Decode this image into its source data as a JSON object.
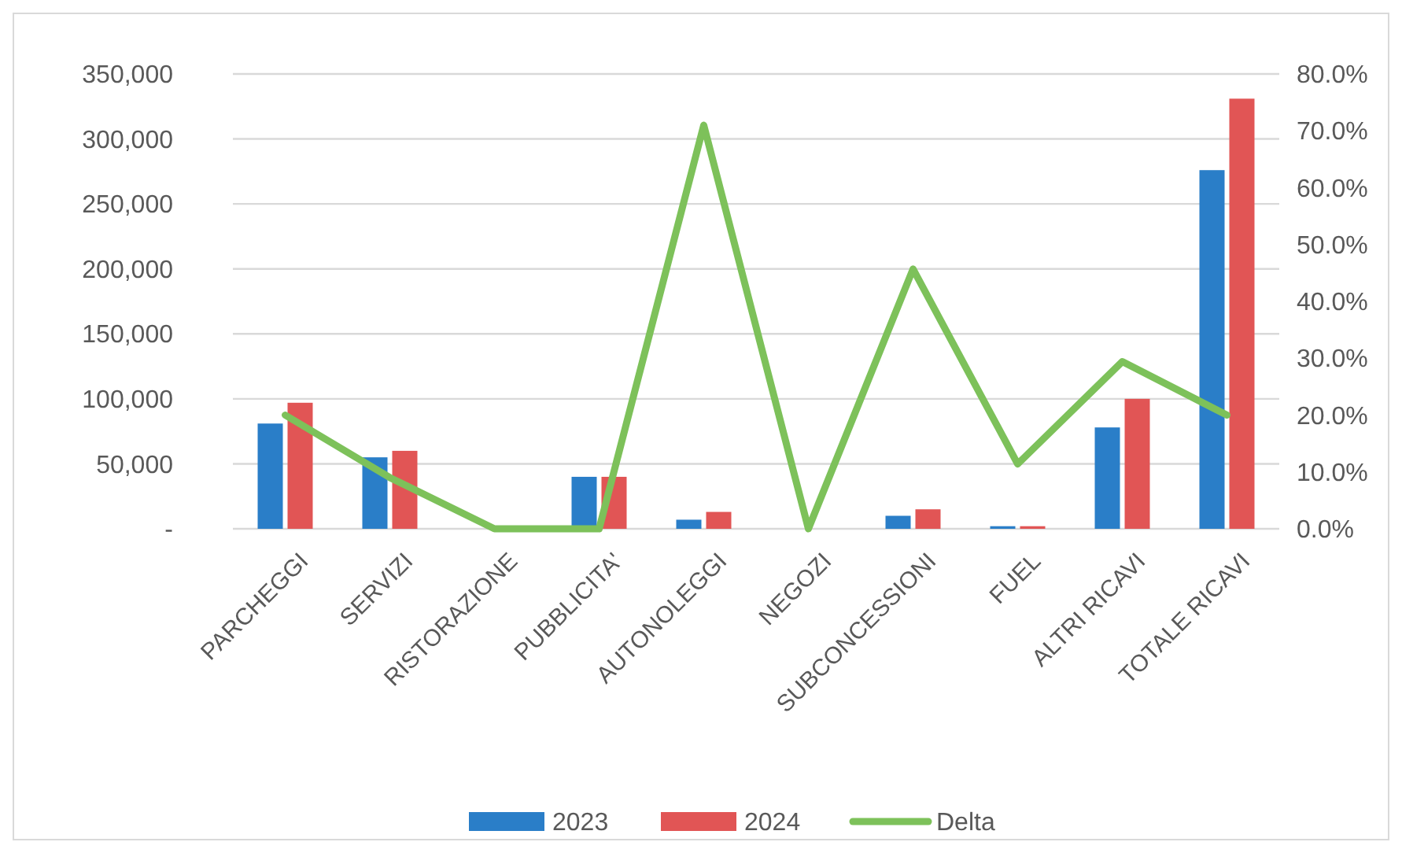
{
  "chart_data": {
    "type": "bar",
    "categories": [
      "PARCHEGGI",
      "SERVIZI",
      "RISTORAZIONE",
      "PUBBLICITA'",
      "AUTONOLEGGI",
      "NEGOZI",
      "SUBCONCESSIONI",
      "FUEL",
      "ALTRI RICAVI",
      "TOTALE RICAVI"
    ],
    "series": [
      {
        "name": "2023",
        "color": "#2a7ec8",
        "values": [
          81000,
          55000,
          0,
          40000,
          7000,
          0,
          10000,
          2000,
          78000,
          276000
        ]
      },
      {
        "name": "2024",
        "color": "#e15555",
        "values": [
          97000,
          60000,
          0,
          40000,
          13000,
          0,
          15000,
          2000,
          100000,
          331000
        ]
      },
      {
        "name": "Delta",
        "type": "line",
        "axis": "y2",
        "color": "#7dc15a",
        "values": [
          20,
          9,
          0,
          0,
          71,
          0,
          45.7,
          11.4,
          29.4,
          20
        ]
      }
    ],
    "ylim": [
      0,
      350000
    ],
    "yticks": [
      {
        "value": 0,
        "label": "-"
      },
      {
        "value": 50000,
        "label": "50,000"
      },
      {
        "value": 100000,
        "label": "100,000"
      },
      {
        "value": 150000,
        "label": "150,000"
      },
      {
        "value": 200000,
        "label": "200,000"
      },
      {
        "value": 250000,
        "label": "250,000"
      },
      {
        "value": 300000,
        "label": "300,000"
      },
      {
        "value": 350000,
        "label": "350,000"
      }
    ],
    "y2lim": [
      0,
      80
    ],
    "y2ticks": [
      {
        "value": 0,
        "label": "0.0%"
      },
      {
        "value": 10,
        "label": "10.0%"
      },
      {
        "value": 20,
        "label": "20.0%"
      },
      {
        "value": 30,
        "label": "30.0%"
      },
      {
        "value": 40,
        "label": "40.0%"
      },
      {
        "value": 50,
        "label": "50.0%"
      },
      {
        "value": 60,
        "label": "60.0%"
      },
      {
        "value": 70,
        "label": "70.0%"
      },
      {
        "value": 80,
        "label": "80.0%"
      }
    ],
    "grid": "y",
    "legend": "bottom"
  }
}
